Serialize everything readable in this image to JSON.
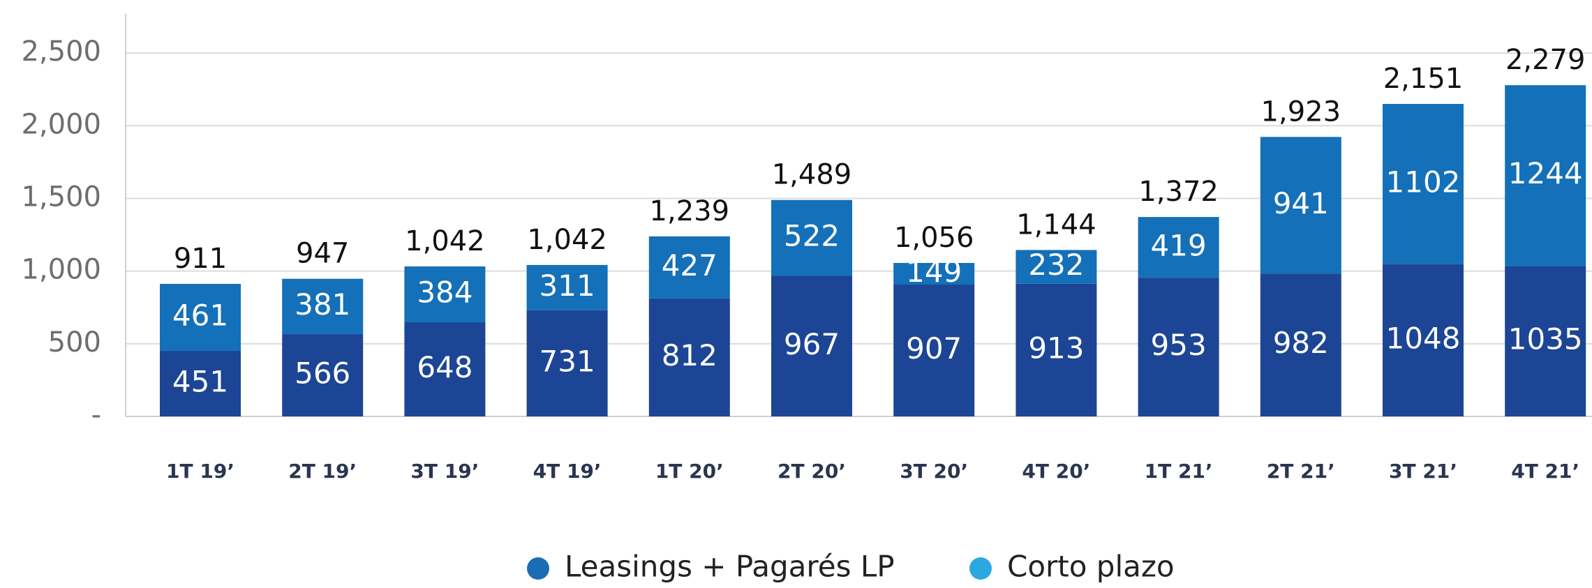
{
  "chart_data": {
    "type": "stacked_bar",
    "categories": [
      "1T 19’",
      "2T 19’",
      "3T 19’",
      "4T 19’",
      "1T 20’",
      "2T 20’",
      "3T 20’",
      "4T 20’",
      "1T 21’",
      "2T 21’",
      "3T 21’",
      "4T 21’"
    ],
    "series": [
      {
        "name": "Leasings + Pagarés LP",
        "color": "#1c4595",
        "legend_color": "#1a6db5",
        "values": [
          451,
          566,
          648,
          731,
          812,
          967,
          907,
          913,
          953,
          982,
          1048,
          1035
        ]
      },
      {
        "name": "Corto plazo",
        "color": "#1470b8",
        "legend_color": "#2aa9e0",
        "values": [
          461,
          381,
          384,
          311,
          427,
          522,
          149,
          232,
          419,
          941,
          1102,
          1244
        ]
      }
    ],
    "totals": [
      911,
      947,
      1042,
      1042,
      1239,
      1489,
      1056,
      1144,
      1372,
      1923,
      2151,
      2279
    ],
    "totals_value_labels": [
      "911",
      "947",
      "1,042",
      "1,042",
      "1,239",
      "1,489",
      "1,056",
      "1,144",
      "1,372",
      "1,923",
      "2,151",
      "2,279"
    ],
    "ylim": [
      0,
      2750
    ],
    "yticks": [
      {
        "value": 0,
        "label": "-"
      },
      500,
      {
        "value": 1000,
        "label": "1,000"
      },
      {
        "value": 1500,
        "label": "1,500"
      },
      {
        "value": 2000,
        "label": "2,000"
      },
      {
        "value": 2500,
        "label": "2,500"
      }
    ],
    "grid": true
  }
}
